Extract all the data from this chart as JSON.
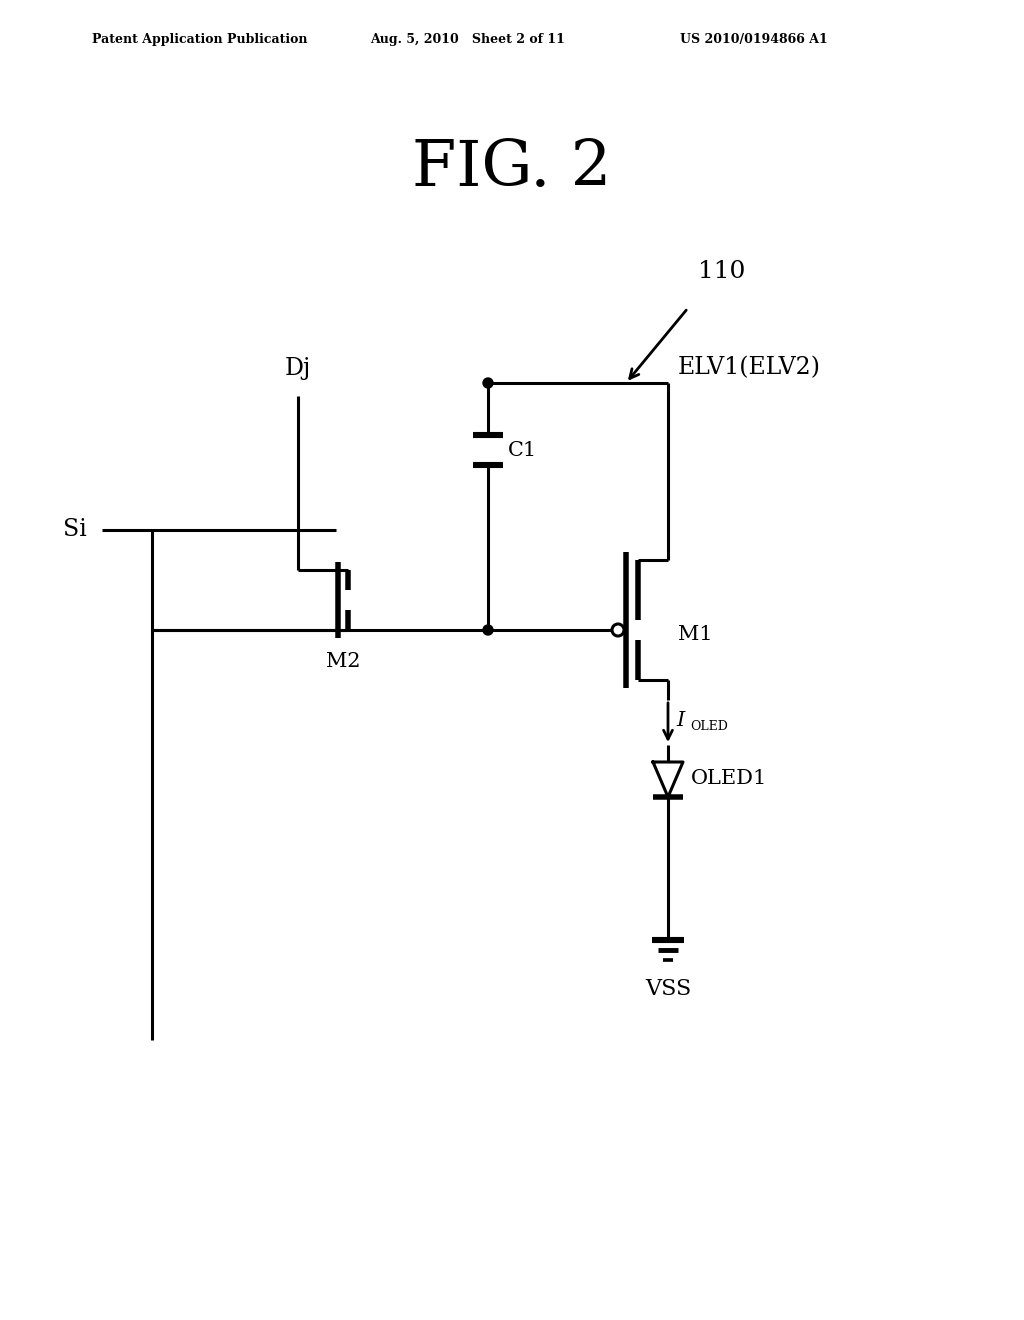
{
  "fig_title": "FIG. 2",
  "header_left": "Patent Application Publication",
  "header_center": "Aug. 5, 2010   Sheet 2 of 11",
  "header_right": "US 2010/0194866 A1",
  "label_110": "110",
  "label_Dj": "Dj",
  "label_Si": "Si",
  "label_M1": "M1",
  "label_M2": "M2",
  "label_C1": "C1",
  "label_ELV": "ELV1(ELV2)",
  "label_IOLED": "I",
  "label_OLED_sub": "OLED",
  "label_OLED1": "OLED1",
  "label_VSS": "VSS",
  "lw": 2.2,
  "bg_color": "#ffffff",
  "fg_color": "#000000"
}
